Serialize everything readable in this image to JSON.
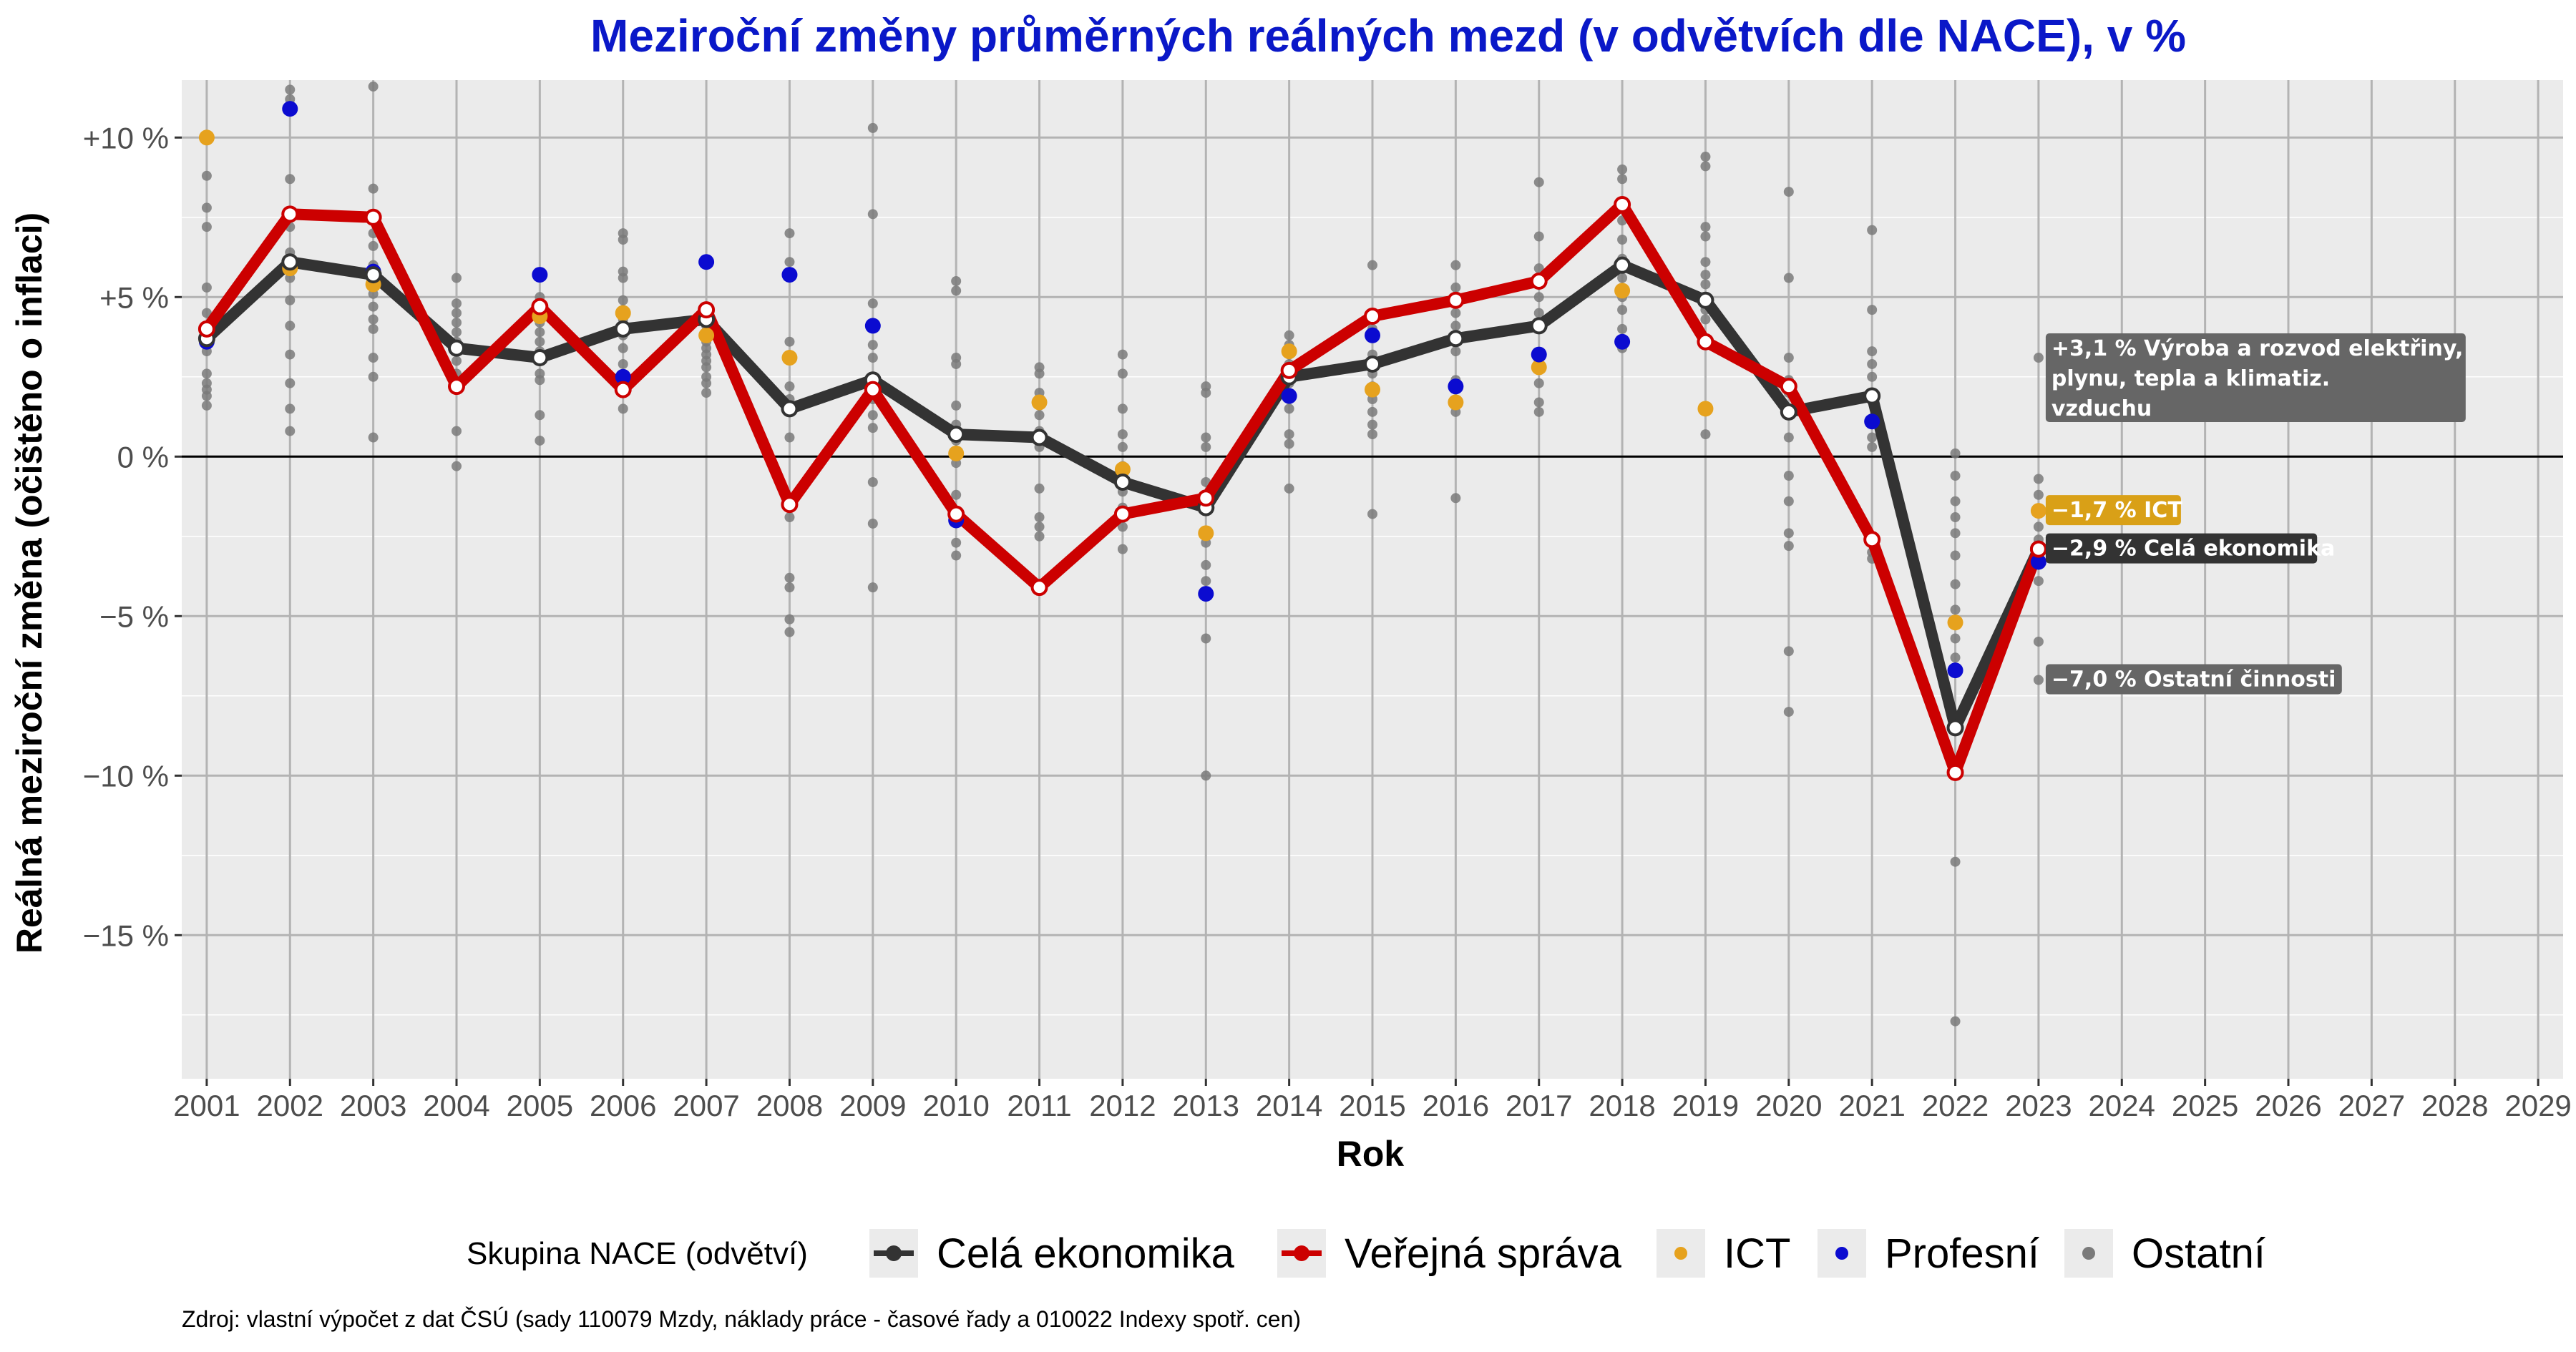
{
  "title": "Meziroční změny průměrných reálných mezd (v odvětvích dle NACE), v %",
  "caption": "Zdroj: vlastní výpočet z dat ČSÚ (sady 110079 Mzdy, náklady práce - časové řady a 010022 Indexy spotř. cen)",
  "chart_data": {
    "type": "line",
    "xlabel": "Rok",
    "ylabel": "Reálná meziroční změna (očištěno o inflaci)",
    "xlim": [
      2000.7,
      2029.3
    ],
    "ylim": [
      -19.5,
      11.8
    ],
    "x_ticks": [
      2001,
      2002,
      2003,
      2004,
      2005,
      2006,
      2007,
      2008,
      2009,
      2010,
      2011,
      2012,
      2013,
      2014,
      2015,
      2016,
      2017,
      2018,
      2019,
      2020,
      2021,
      2022,
      2023,
      2024,
      2025,
      2026,
      2027,
      2028,
      2029
    ],
    "y_ticks": [
      {
        "value": 10,
        "label": "+10 %"
      },
      {
        "value": 5,
        "label": "+5 %"
      },
      {
        "value": 0,
        "label": "0 %"
      },
      {
        "value": -5,
        "label": "−5 %"
      },
      {
        "value": -10,
        "label": "−10 %"
      },
      {
        "value": -15,
        "label": "−15 %"
      }
    ],
    "grid": true,
    "zero_line": true,
    "legend": {
      "title": "Skupina NACE (odvětví)",
      "placement": "bottom",
      "entries": [
        {
          "label": "Celá ekonomika",
          "kind": "line",
          "color": "#333333"
        },
        {
          "label": "Veřejná správa",
          "kind": "line",
          "color": "#cc0000"
        },
        {
          "label": "ICT",
          "kind": "point",
          "color": "#e6a21e"
        },
        {
          "label": "Profesní",
          "kind": "point",
          "color": "#0b0bd0"
        },
        {
          "label": "Ostatní",
          "kind": "point",
          "color": "#7a7a7a"
        }
      ]
    },
    "series": [
      {
        "name": "Celá ekonomika",
        "kind": "line",
        "color": "#333333",
        "x": [
          2001,
          2002,
          2003,
          2004,
          2005,
          2006,
          2007,
          2008,
          2009,
          2010,
          2011,
          2012,
          2013,
          2014,
          2015,
          2016,
          2017,
          2018,
          2019,
          2020,
          2021,
          2022,
          2023
        ],
        "y": [
          3.7,
          6.1,
          5.7,
          3.4,
          3.1,
          4.0,
          4.3,
          1.5,
          2.4,
          0.7,
          0.6,
          -0.8,
          -1.6,
          2.5,
          2.9,
          3.7,
          4.1,
          6.0,
          4.9,
          1.4,
          1.9,
          -8.5,
          -2.9
        ]
      },
      {
        "name": "Veřejná správa",
        "kind": "line",
        "color": "#cc0000",
        "x": [
          2001,
          2002,
          2003,
          2004,
          2005,
          2006,
          2007,
          2008,
          2009,
          2010,
          2011,
          2012,
          2013,
          2014,
          2015,
          2016,
          2017,
          2018,
          2019,
          2020,
          2021,
          2022,
          2023
        ],
        "y": [
          4.0,
          7.6,
          7.5,
          2.2,
          4.7,
          2.1,
          4.6,
          -1.5,
          2.1,
          -1.8,
          -4.1,
          -1.8,
          -1.3,
          2.7,
          4.4,
          4.9,
          5.5,
          7.9,
          3.6,
          2.2,
          -2.6,
          -9.9,
          -2.9
        ]
      },
      {
        "name": "ICT",
        "kind": "point",
        "color": "#e6a21e",
        "x": [
          2001,
          2002,
          2003,
          2005,
          2006,
          2007,
          2008,
          2009,
          2010,
          2011,
          2012,
          2013,
          2014,
          2015,
          2016,
          2017,
          2018,
          2019,
          2022,
          2023
        ],
        "y": [
          10.0,
          5.9,
          5.4,
          4.4,
          4.5,
          3.8,
          3.1,
          2.1,
          0.1,
          1.7,
          -0.4,
          -2.4,
          3.3,
          2.1,
          1.7,
          2.8,
          5.2,
          1.5,
          -5.2,
          -1.7
        ]
      },
      {
        "name": "Profesní",
        "kind": "point",
        "color": "#0b0bd0",
        "x": [
          2001,
          2002,
          2003,
          2005,
          2006,
          2007,
          2008,
          2009,
          2010,
          2013,
          2014,
          2015,
          2016,
          2017,
          2018,
          2021,
          2022,
          2023
        ],
        "y": [
          3.6,
          10.9,
          5.8,
          5.7,
          2.5,
          6.1,
          5.7,
          4.1,
          -2.0,
          -4.3,
          1.9,
          3.8,
          2.2,
          3.2,
          3.6,
          1.1,
          -6.7,
          -3.3
        ]
      },
      {
        "name": "Ostatní",
        "kind": "point",
        "color": "#7a7a7a",
        "x": [
          2001,
          2001,
          2001,
          2001,
          2001,
          2001,
          2001,
          2001,
          2001,
          2001,
          2001,
          2001,
          2002,
          2002,
          2002,
          2002,
          2002,
          2002,
          2002,
          2002,
          2002,
          2002,
          2002,
          2002,
          2003,
          2003,
          2003,
          2003,
          2003,
          2003,
          2003,
          2003,
          2003,
          2003,
          2003,
          2003,
          2004,
          2004,
          2004,
          2004,
          2004,
          2004,
          2004,
          2004,
          2004,
          2004,
          2004,
          2005,
          2005,
          2005,
          2005,
          2005,
          2005,
          2005,
          2005,
          2005,
          2005,
          2005,
          2006,
          2006,
          2006,
          2006,
          2006,
          2006,
          2006,
          2006,
          2006,
          2006,
          2006,
          2006,
          2007,
          2007,
          2007,
          2007,
          2007,
          2007,
          2007,
          2007,
          2007,
          2007,
          2007,
          2008,
          2008,
          2008,
          2008,
          2008,
          2008,
          2008,
          2008,
          2008,
          2008,
          2008,
          2009,
          2009,
          2009,
          2009,
          2009,
          2009,
          2009,
          2009,
          2009,
          2009,
          2009,
          2009,
          2010,
          2010,
          2010,
          2010,
          2010,
          2010,
          2010,
          2010,
          2010,
          2010,
          2010,
          2011,
          2011,
          2011,
          2011,
          2011,
          2011,
          2011,
          2011,
          2011,
          2011,
          2011,
          2012,
          2012,
          2012,
          2012,
          2012,
          2012,
          2012,
          2012,
          2012,
          2012,
          2013,
          2013,
          2013,
          2013,
          2013,
          2013,
          2013,
          2013,
          2013,
          2013,
          2013,
          2014,
          2014,
          2014,
          2014,
          2014,
          2014,
          2014,
          2014,
          2014,
          2014,
          2014,
          2015,
          2015,
          2015,
          2015,
          2015,
          2015,
          2015,
          2015,
          2015,
          2015,
          2015,
          2016,
          2016,
          2016,
          2016,
          2016,
          2016,
          2016,
          2016,
          2016,
          2016,
          2016,
          2017,
          2017,
          2017,
          2017,
          2017,
          2017,
          2017,
          2017,
          2017,
          2017,
          2017,
          2018,
          2018,
          2018,
          2018,
          2018,
          2018,
          2018,
          2018,
          2018,
          2018,
          2018,
          2019,
          2019,
          2019,
          2019,
          2019,
          2019,
          2019,
          2019,
          2019,
          2019,
          2019,
          2020,
          2020,
          2020,
          2020,
          2020,
          2020,
          2020,
          2020,
          2020,
          2020,
          2020,
          2020,
          2021,
          2021,
          2021,
          2021,
          2021,
          2021,
          2021,
          2021,
          2021,
          2021,
          2021,
          2022,
          2022,
          2022,
          2022,
          2022,
          2022,
          2022,
          2022,
          2022,
          2022,
          2022,
          2022,
          2023,
          2023,
          2023,
          2023,
          2023,
          2023,
          2023,
          2023
        ],
        "y": [
          8.8,
          7.8,
          7.2,
          5.3,
          4.5,
          4.1,
          3.3,
          2.6,
          2.3,
          2.1,
          1.9,
          1.6,
          11.5,
          11.2,
          8.7,
          7.2,
          6.4,
          5.6,
          4.9,
          4.1,
          3.2,
          2.3,
          1.5,
          0.8,
          11.6,
          8.4,
          7.0,
          6.6,
          6.0,
          5.1,
          4.7,
          4.3,
          4.0,
          3.1,
          2.5,
          0.6,
          5.6,
          4.8,
          4.5,
          4.2,
          3.9,
          3.6,
          3.0,
          2.6,
          2.2,
          0.8,
          -0.3,
          5.0,
          4.8,
          4.2,
          3.9,
          3.6,
          3.3,
          3.0,
          2.6,
          2.4,
          1.3,
          0.5,
          7.0,
          6.8,
          5.8,
          5.6,
          4.9,
          4.6,
          4.3,
          3.8,
          3.4,
          2.9,
          2.4,
          1.5,
          4.4,
          4.1,
          3.9,
          3.6,
          3.4,
          3.2,
          3.0,
          2.8,
          2.5,
          2.3,
          2.0,
          7.0,
          6.1,
          3.6,
          2.2,
          1.8,
          0.6,
          -1.9,
          -3.8,
          -4.1,
          -5.1,
          -5.5,
          10.3,
          7.6,
          4.8,
          3.5,
          3.1,
          2.5,
          1.8,
          1.3,
          0.9,
          -0.8,
          -2.1,
          -4.1,
          5.5,
          5.2,
          3.1,
          2.9,
          1.6,
          1.0,
          0.5,
          -0.2,
          -1.2,
          -2.7,
          -3.1,
          2.8,
          2.6,
          2.0,
          1.6,
          1.3,
          0.8,
          0.3,
          -1.0,
          -1.9,
          -2.2,
          -2.5,
          3.2,
          2.6,
          1.5,
          0.7,
          0.3,
          -0.3,
          -1.1,
          -1.6,
          -2.2,
          -2.9,
          2.2,
          2.0,
          0.6,
          0.3,
          -0.8,
          -1.3,
          -2.7,
          -3.4,
          -3.9,
          -5.7,
          -10.0,
          3.8,
          3.5,
          3.2,
          2.9,
          2.7,
          2.3,
          1.8,
          1.5,
          0.7,
          0.4,
          -1.0,
          6.0,
          4.4,
          4.0,
          3.2,
          2.6,
          2.2,
          1.8,
          1.4,
          1.0,
          0.7,
          -1.8,
          6.0,
          5.3,
          5.0,
          4.5,
          4.1,
          3.7,
          3.3,
          2.4,
          2.1,
          1.4,
          -1.3,
          8.6,
          6.9,
          5.9,
          5.5,
          5.0,
          4.5,
          4.0,
          3.0,
          2.3,
          1.7,
          1.4,
          9.0,
          8.7,
          7.4,
          6.8,
          6.2,
          5.6,
          5.0,
          4.6,
          4.0,
          3.6,
          3.4,
          9.4,
          9.1,
          7.2,
          6.9,
          6.1,
          5.7,
          5.4,
          4.6,
          4.3,
          3.5,
          0.7,
          8.3,
          5.6,
          3.1,
          2.4,
          2.0,
          0.6,
          -0.6,
          -1.4,
          -2.4,
          -2.8,
          -6.1,
          -8.0,
          7.1,
          4.6,
          3.3,
          2.9,
          2.5,
          1.8,
          1.2,
          0.6,
          0.3,
          -3.0,
          -3.2,
          0.1,
          -0.6,
          -1.4,
          -1.9,
          -2.4,
          -3.1,
          -4.0,
          -4.8,
          -5.7,
          -6.3,
          -12.7,
          -17.7,
          3.1,
          -0.7,
          -1.2,
          -2.2,
          -2.6,
          -3.9,
          -5.8,
          -7.0
        ]
      }
    ],
    "annotations": [
      {
        "x": 2023,
        "y": 3.1,
        "text": "+3,1 % Výroba a rozvod elektřiny, plynu, tepla a klimatiz. vzduchu",
        "lines": [
          "+3,1 % Výroba a rozvod elektřiny,",
          "plynu, tepla a klimatiz.",
          "vzduchu"
        ],
        "color": "#666666"
      },
      {
        "x": 2023,
        "y": -1.7,
        "text": "−1,7 % ICT",
        "lines": [
          "−1,7 % ICT"
        ],
        "color": "#d9a017"
      },
      {
        "x": 2023,
        "y": -2.9,
        "text": "−2,9 % Celá ekonomika",
        "lines": [
          "−2,9 % Celá ekonomika"
        ],
        "color": "#333333"
      },
      {
        "x": 2023,
        "y": -7.0,
        "text": "−7,0 % Ostatní činnosti",
        "lines": [
          "−7,0 % Ostatní činnosti"
        ],
        "color": "#666666"
      }
    ]
  }
}
